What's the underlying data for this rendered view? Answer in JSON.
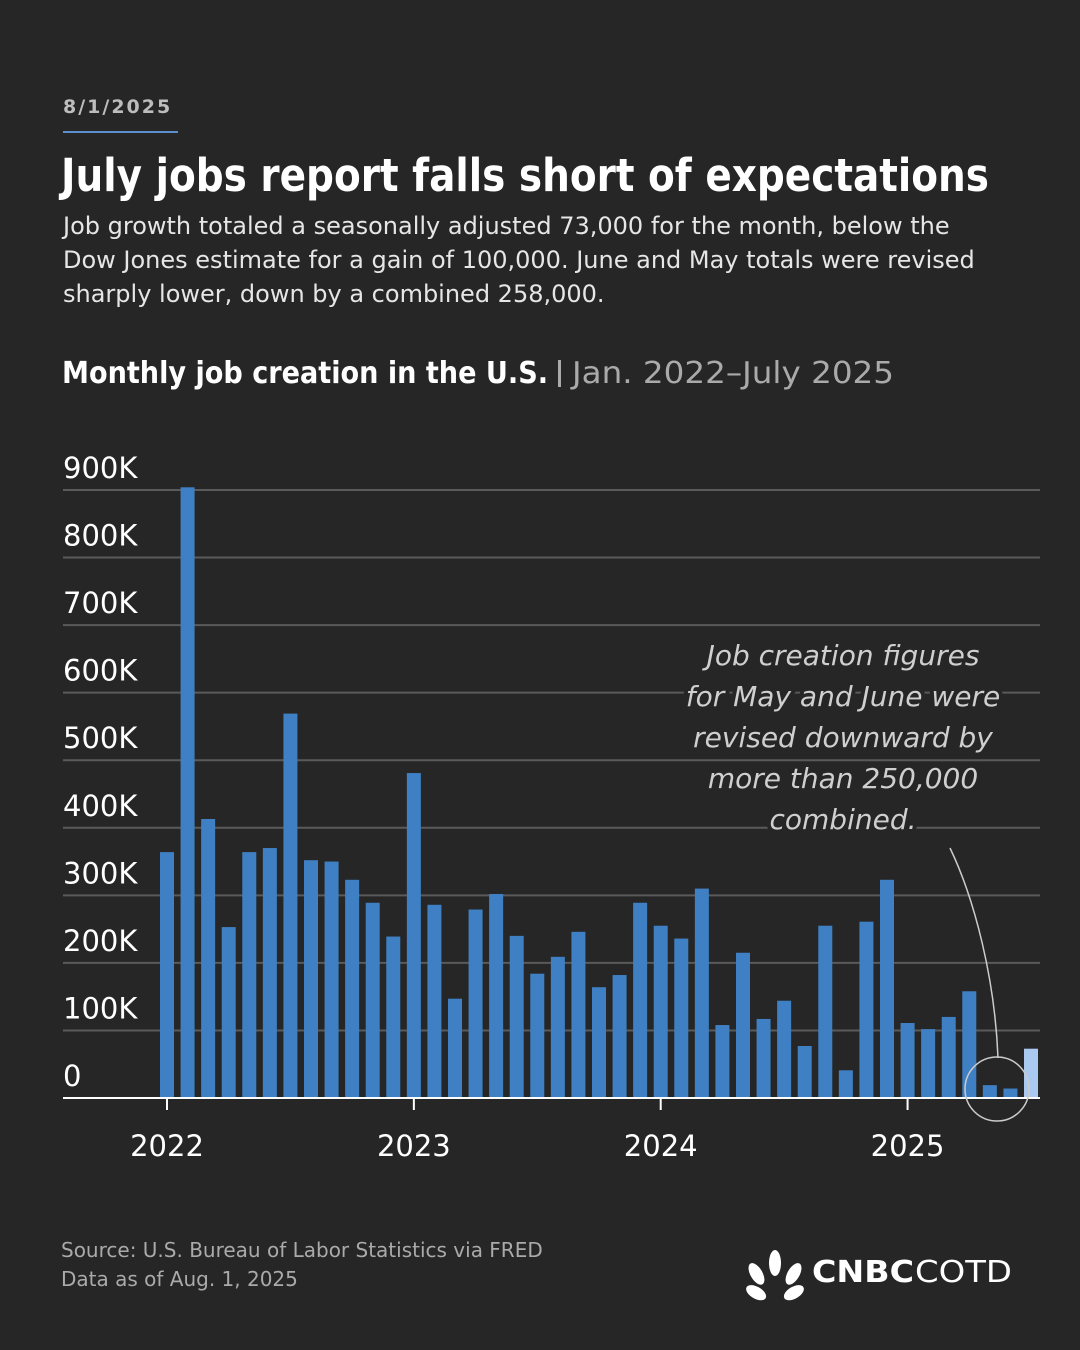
{
  "header": {
    "date": "8/1/2025",
    "title": "July jobs report falls short of expectations",
    "subtitle_lines": [
      "Job growth totaled a seasonally adjusted 73,000 for the month, below the",
      "Dow Jones estimate for a gain of 100,000. June and May totals were revised",
      "sharply lower, down by a combined 258,000."
    ]
  },
  "chart_data": {
    "type": "bar",
    "title": "Monthly job creation in the U.S.",
    "subtitle": "Jan. 2022–July 2025",
    "categories": [
      "2022",
      null,
      null,
      null,
      null,
      null,
      null,
      null,
      null,
      null,
      null,
      null,
      "2023",
      null,
      null,
      null,
      null,
      null,
      null,
      null,
      null,
      null,
      null,
      null,
      "2024",
      null,
      null,
      null,
      null,
      null,
      null,
      null,
      null,
      null,
      null,
      null,
      "2025",
      null,
      null,
      null,
      null,
      null,
      null
    ],
    "values": [
      364,
      904,
      413,
      253,
      364,
      370,
      569,
      352,
      350,
      323,
      289,
      239,
      481,
      286,
      147,
      279,
      302,
      240,
      184,
      209,
      246,
      164,
      182,
      289,
      255,
      236,
      310,
      108,
      215,
      117,
      144,
      77,
      255,
      41,
      261,
      323,
      111,
      102,
      120,
      158,
      19,
      14,
      73
    ],
    "colors": [
      "#3f80c4",
      "#3f80c4",
      "#3f80c4",
      "#3f80c4",
      "#3f80c4",
      "#3f80c4",
      "#3f80c4",
      "#3f80c4",
      "#3f80c4",
      "#3f80c4",
      "#3f80c4",
      "#3f80c4",
      "#3f80c4",
      "#3f80c4",
      "#3f80c4",
      "#3f80c4",
      "#3f80c4",
      "#3f80c4",
      "#3f80c4",
      "#3f80c4",
      "#3f80c4",
      "#3f80c4",
      "#3f80c4",
      "#3f80c4",
      "#3f80c4",
      "#3f80c4",
      "#3f80c4",
      "#3f80c4",
      "#3f80c4",
      "#3f80c4",
      "#3f80c4",
      "#3f80c4",
      "#3f80c4",
      "#3f80c4",
      "#3f80c4",
      "#3f80c4",
      "#3f80c4",
      "#3f80c4",
      "#3f80c4",
      "#3f80c4",
      "#3f80c4",
      "#3f80c4",
      "#a9c9f1"
    ],
    "ylim": [
      0,
      900
    ],
    "yticks": [
      0,
      {
        "value": 100,
        "label": "100K"
      },
      {
        "value": 200,
        "label": "200K"
      },
      {
        "value": 300,
        "label": "300K"
      },
      {
        "value": 400,
        "label": "400K"
      },
      {
        "value": 500,
        "label": "500K"
      },
      {
        "value": 600,
        "label": "600K"
      },
      {
        "value": 700,
        "label": "700K"
      },
      {
        "value": 800,
        "label": "800K"
      },
      {
        "value": 900,
        "label": "900K"
      }
    ],
    "grid": true,
    "annotation_lines": [
      "Job creation figures",
      "for May and June were",
      "revised downward by",
      "more than 250,000",
      "combined."
    ]
  },
  "footer": {
    "source": "Source: U.S. Bureau of Labor Statistics via FRED",
    "data_as_of": "Data as of Aug. 1, 2025",
    "logo_bold": "CNBC",
    "logo_light": "COTD"
  }
}
